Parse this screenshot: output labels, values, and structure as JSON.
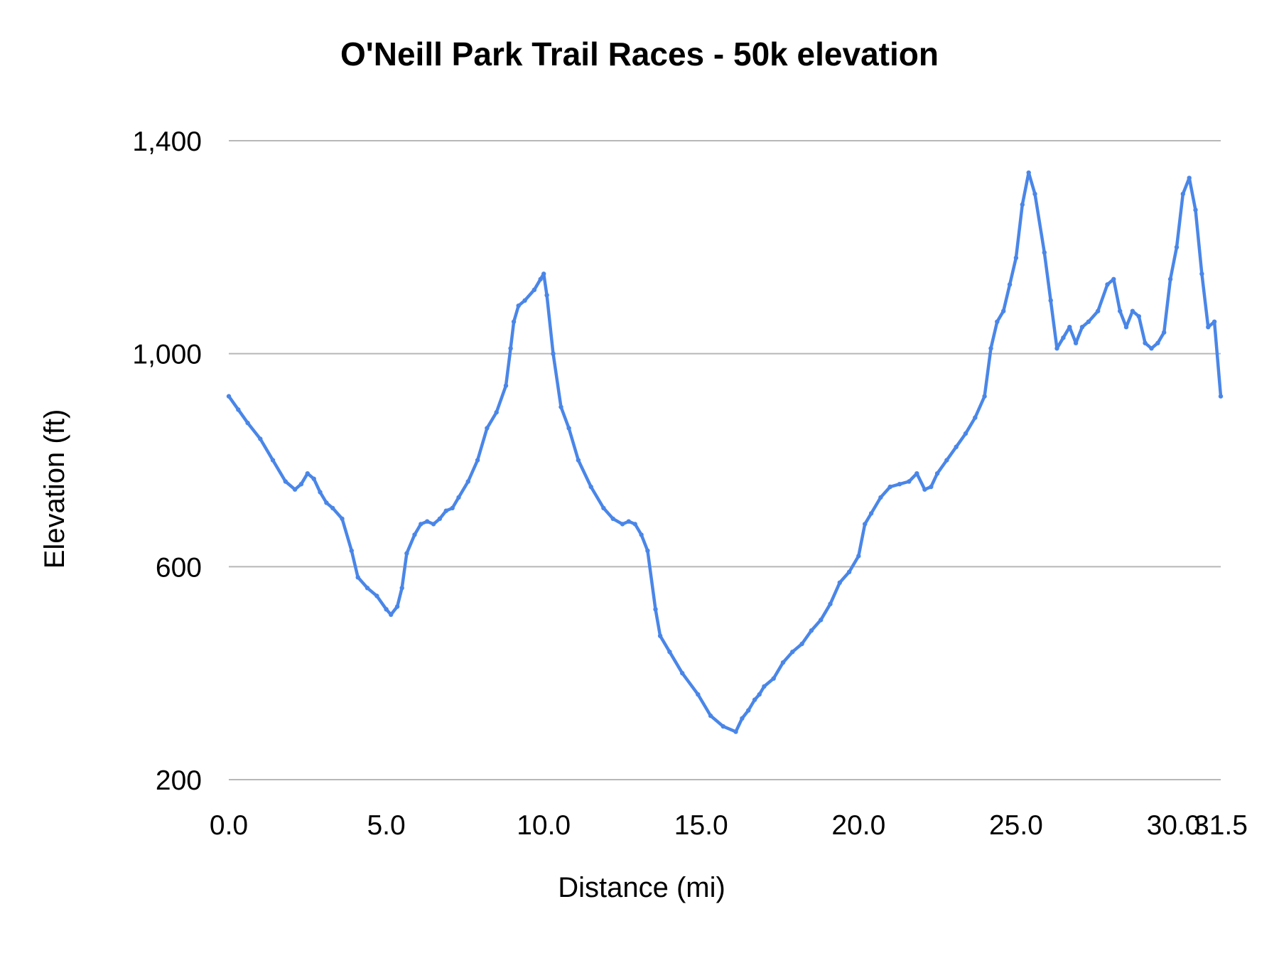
{
  "chart_data": {
    "type": "line",
    "title": "O'Neill Park Trail Races - 50k elevation",
    "xlabel": "Distance (mi)",
    "ylabel": "Elevation (ft)",
    "xlim": [
      0,
      31.5
    ],
    "ylim": [
      200,
      1400
    ],
    "grid": true,
    "x_ticks": [
      {
        "value": 0,
        "label": "0.0"
      },
      {
        "value": 5,
        "label": "5.0"
      },
      {
        "value": 10,
        "label": "10.0"
      },
      {
        "value": 15,
        "label": "15.0"
      },
      {
        "value": 20,
        "label": "20.0"
      },
      {
        "value": 25,
        "label": "25.0"
      },
      {
        "value": 30,
        "label": "30.0"
      },
      {
        "value": 31.5,
        "label": "31.5"
      }
    ],
    "y_ticks": [
      {
        "value": 200,
        "label": "200"
      },
      {
        "value": 600,
        "label": "600"
      },
      {
        "value": 1000,
        "label": "1,000"
      },
      {
        "value": 1400,
        "label": "1,400"
      }
    ],
    "colors": {
      "series": "#4a86e8"
    },
    "series": [
      {
        "x": [
          0,
          0.3,
          0.6,
          1.0,
          1.4,
          1.8,
          2.1,
          2.3,
          2.5,
          2.7,
          2.9,
          3.1,
          3.3,
          3.6,
          3.9,
          4.1,
          4.4,
          4.7,
          5.0,
          5.15,
          5.35,
          5.5,
          5.65,
          5.9,
          6.1,
          6.3,
          6.5,
          6.7,
          6.9,
          7.1,
          7.3,
          7.6,
          7.9,
          8.2,
          8.5,
          8.8,
          8.95,
          9.05,
          9.2,
          9.4,
          9.7,
          9.9,
          10.0,
          10.1,
          10.3,
          10.55,
          10.8,
          11.1,
          11.5,
          11.9,
          12.2,
          12.5,
          12.7,
          12.9,
          13.1,
          13.3,
          13.55,
          13.7,
          14.0,
          14.4,
          14.9,
          15.3,
          15.7,
          16.1,
          16.3,
          16.5,
          16.7,
          16.85,
          17.0,
          17.3,
          17.6,
          17.9,
          18.2,
          18.5,
          18.8,
          19.1,
          19.4,
          19.7,
          20.0,
          20.2,
          20.4,
          20.7,
          21.0,
          21.3,
          21.6,
          21.85,
          22.1,
          22.3,
          22.5,
          22.8,
          23.1,
          23.4,
          23.7,
          24.0,
          24.2,
          24.4,
          24.6,
          24.8,
          25.0,
          25.2,
          25.4,
          25.6,
          25.9,
          26.1,
          26.3,
          26.5,
          26.7,
          26.9,
          27.1,
          27.3,
          27.6,
          27.9,
          28.1,
          28.3,
          28.5,
          28.7,
          28.9,
          29.1,
          29.3,
          29.5,
          29.7,
          29.9,
          30.1,
          30.3,
          30.5,
          30.7,
          30.9,
          31.1,
          31.3,
          31.5
        ],
        "values": [
          920,
          895,
          870,
          840,
          800,
          760,
          745,
          755,
          775,
          765,
          740,
          720,
          710,
          690,
          630,
          580,
          560,
          545,
          520,
          510,
          525,
          560,
          625,
          660,
          680,
          685,
          680,
          690,
          705,
          710,
          730,
          760,
          800,
          860,
          890,
          940,
          1010,
          1060,
          1090,
          1100,
          1120,
          1140,
          1150,
          1110,
          1000,
          900,
          860,
          800,
          750,
          710,
          690,
          680,
          685,
          680,
          660,
          630,
          520,
          470,
          440,
          400,
          360,
          320,
          300,
          290,
          315,
          330,
          350,
          360,
          375,
          390,
          420,
          440,
          455,
          480,
          500,
          530,
          570,
          590,
          620,
          680,
          700,
          730,
          750,
          755,
          760,
          775,
          745,
          750,
          775,
          800,
          825,
          850,
          880,
          920,
          1010,
          1060,
          1080,
          1130,
          1180,
          1280,
          1340,
          1300,
          1190,
          1100,
          1010,
          1030,
          1050,
          1020,
          1050,
          1060,
          1080,
          1130,
          1140,
          1080,
          1050,
          1080,
          1070,
          1020,
          1010,
          1020,
          1040,
          1140,
          1200,
          1300,
          1330,
          1270,
          1150,
          1050,
          1060,
          920
        ]
      }
    ]
  }
}
